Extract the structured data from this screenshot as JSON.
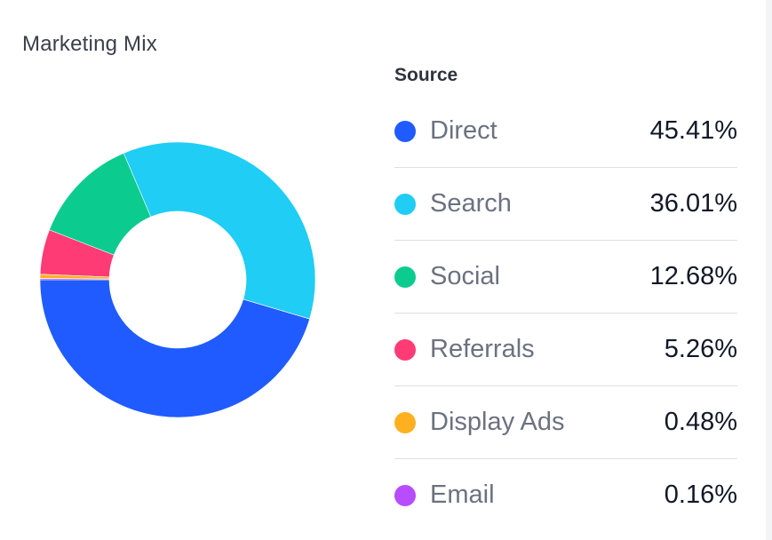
{
  "card": {
    "title": "Marketing Mix"
  },
  "legend": {
    "header": "Source",
    "items": [
      {
        "label": "Direct",
        "value": "45.41%",
        "color": "#1f5bff"
      },
      {
        "label": "Search",
        "value": "36.01%",
        "color": "#1fcdf5"
      },
      {
        "label": "Social",
        "value": "12.68%",
        "color": "#0ccb8e"
      },
      {
        "label": "Referrals",
        "value": "5.26%",
        "color": "#ff3b75"
      },
      {
        "label": "Display Ads",
        "value": "0.48%",
        "color": "#ffb020"
      },
      {
        "label": "Email",
        "value": "0.16%",
        "color": "#b84cff"
      }
    ]
  },
  "chart_data": {
    "type": "pie",
    "donut": true,
    "title": "Marketing Mix",
    "legend_title": "Source",
    "legend_placement": "right",
    "categories": [
      "Direct",
      "Search",
      "Social",
      "Referrals",
      "Display Ads",
      "Email"
    ],
    "values": [
      45.41,
      36.01,
      12.68,
      5.26,
      0.48,
      0.16
    ],
    "colors": [
      "#1f5bff",
      "#1fcdf5",
      "#0ccb8e",
      "#ff3b75",
      "#ffb020",
      "#b84cff"
    ]
  }
}
